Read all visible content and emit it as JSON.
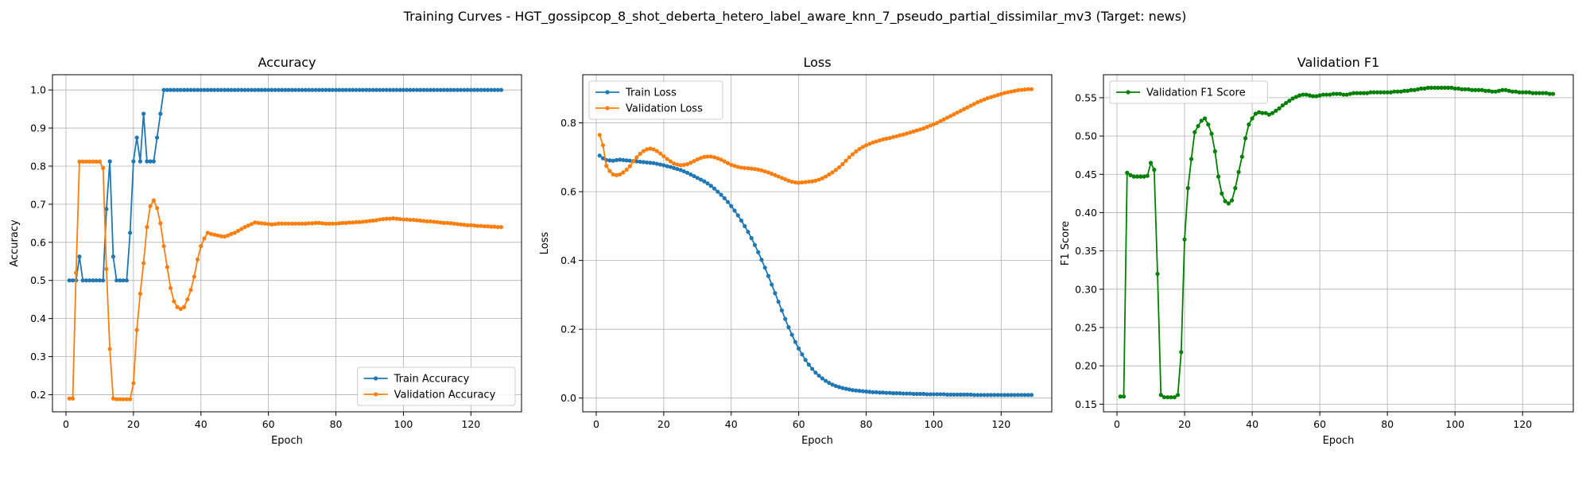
{
  "figure": {
    "suptitle": "Training Curves - HGT_gossipcop_8_shot_deberta_hetero_label_aware_knn_7_pseudo_partial_dissimilar_mv3 (Target: news)"
  },
  "chart_data": [
    {
      "type": "line",
      "title": "Accuracy",
      "xlabel": "Epoch",
      "ylabel": "Accuracy",
      "xlim": [
        -4,
        135
      ],
      "ylim": [
        0.155,
        1.04
      ],
      "xticks": [
        0,
        20,
        40,
        60,
        80,
        100,
        120
      ],
      "yticks": [
        0.2,
        0.3,
        0.4,
        0.5,
        0.6,
        0.7,
        0.8,
        0.9,
        1.0
      ],
      "grid": true,
      "legend": "lower-right",
      "series": [
        {
          "name": "Train Accuracy",
          "color": "#1f77b4",
          "x_start": 1,
          "x_step": 1,
          "values": [
            0.5,
            0.5,
            0.5,
            0.5625,
            0.5,
            0.5,
            0.5,
            0.5,
            0.5,
            0.5,
            0.5,
            0.6875,
            0.8125,
            0.5625,
            0.5,
            0.5,
            0.5,
            0.5,
            0.625,
            0.8125,
            0.875,
            0.8125,
            0.9375,
            0.8125,
            0.8125,
            0.8125,
            0.875,
            0.9375,
            1.0,
            1.0,
            1.0,
            1.0,
            1.0,
            1.0,
            1.0,
            1.0,
            1.0,
            1.0,
            1.0,
            1.0,
            1.0,
            1.0,
            1.0,
            1.0,
            1.0,
            1.0,
            1.0,
            1.0,
            1.0,
            1.0,
            1.0,
            1.0,
            1.0,
            1.0,
            1.0,
            1.0,
            1.0,
            1.0,
            1.0,
            1.0,
            1.0,
            1.0,
            1.0,
            1.0,
            1.0,
            1.0,
            1.0,
            1.0,
            1.0,
            1.0,
            1.0,
            1.0,
            1.0,
            1.0,
            1.0,
            1.0,
            1.0,
            1.0,
            1.0,
            1.0,
            1.0,
            1.0,
            1.0,
            1.0,
            1.0,
            1.0,
            1.0,
            1.0,
            1.0,
            1.0,
            1.0,
            1.0,
            1.0,
            1.0,
            1.0,
            1.0,
            1.0,
            1.0,
            1.0,
            1.0,
            1.0,
            1.0,
            1.0,
            1.0,
            1.0,
            1.0,
            1.0,
            1.0,
            1.0,
            1.0,
            1.0,
            1.0,
            1.0,
            1.0,
            1.0,
            1.0,
            1.0,
            1.0,
            1.0,
            1.0,
            1.0,
            1.0,
            1.0,
            1.0,
            1.0,
            1.0,
            1.0,
            1.0,
            1.0
          ]
        },
        {
          "name": "Validation Accuracy",
          "color": "#ff7f0e",
          "x_start": 1,
          "x_step": 1,
          "values": [
            0.19,
            0.19,
            0.52,
            0.812,
            0.812,
            0.812,
            0.812,
            0.812,
            0.812,
            0.812,
            0.795,
            0.53,
            0.32,
            0.19,
            0.188,
            0.188,
            0.188,
            0.188,
            0.188,
            0.23,
            0.37,
            0.465,
            0.545,
            0.64,
            0.695,
            0.71,
            0.69,
            0.65,
            0.59,
            0.535,
            0.48,
            0.445,
            0.43,
            0.425,
            0.43,
            0.45,
            0.475,
            0.51,
            0.555,
            0.59,
            0.61,
            0.625,
            0.622,
            0.62,
            0.618,
            0.616,
            0.615,
            0.618,
            0.622,
            0.625,
            0.63,
            0.635,
            0.64,
            0.644,
            0.648,
            0.652,
            0.651,
            0.65,
            0.649,
            0.648,
            0.647,
            0.648,
            0.649,
            0.649,
            0.649,
            0.649,
            0.649,
            0.649,
            0.649,
            0.649,
            0.649,
            0.65,
            0.65,
            0.651,
            0.651,
            0.65,
            0.649,
            0.649,
            0.649,
            0.649,
            0.65,
            0.651,
            0.651,
            0.652,
            0.652,
            0.653,
            0.653,
            0.654,
            0.655,
            0.656,
            0.657,
            0.658,
            0.66,
            0.661,
            0.662,
            0.662,
            0.663,
            0.662,
            0.661,
            0.66,
            0.66,
            0.659,
            0.659,
            0.658,
            0.657,
            0.656,
            0.655,
            0.655,
            0.654,
            0.653,
            0.652,
            0.651,
            0.651,
            0.65,
            0.649,
            0.648,
            0.647,
            0.646,
            0.645,
            0.645,
            0.644,
            0.643,
            0.643,
            0.642,
            0.642,
            0.641,
            0.641,
            0.64,
            0.64
          ]
        }
      ]
    },
    {
      "type": "line",
      "title": "Loss",
      "xlabel": "Epoch",
      "ylabel": "Loss",
      "xlim": [
        -4,
        135
      ],
      "ylim": [
        -0.04,
        0.94
      ],
      "xticks": [
        0,
        20,
        40,
        60,
        80,
        100,
        120
      ],
      "yticks": [
        0.0,
        0.2,
        0.4,
        0.6,
        0.8
      ],
      "grid": true,
      "legend": "upper-left",
      "series": [
        {
          "name": "Train Loss",
          "color": "#1f77b4",
          "x_start": 1,
          "x_step": 1,
          "values": [
            0.705,
            0.697,
            0.692,
            0.691,
            0.69,
            0.692,
            0.693,
            0.692,
            0.691,
            0.69,
            0.689,
            0.688,
            0.687,
            0.686,
            0.685,
            0.684,
            0.683,
            0.681,
            0.679,
            0.677,
            0.674,
            0.672,
            0.669,
            0.666,
            0.663,
            0.659,
            0.655,
            0.65,
            0.645,
            0.64,
            0.635,
            0.63,
            0.624,
            0.617,
            0.609,
            0.6,
            0.591,
            0.581,
            0.57,
            0.558,
            0.545,
            0.531,
            0.516,
            0.5,
            0.483,
            0.465,
            0.445,
            0.424,
            0.402,
            0.379,
            0.355,
            0.33,
            0.305,
            0.28,
            0.255,
            0.23,
            0.206,
            0.184,
            0.163,
            0.144,
            0.127,
            0.111,
            0.097,
            0.085,
            0.074,
            0.065,
            0.057,
            0.05,
            0.044,
            0.039,
            0.035,
            0.032,
            0.029,
            0.027,
            0.025,
            0.023,
            0.022,
            0.021,
            0.02,
            0.019,
            0.018,
            0.017,
            0.017,
            0.016,
            0.016,
            0.015,
            0.015,
            0.014,
            0.014,
            0.014,
            0.013,
            0.013,
            0.013,
            0.012,
            0.012,
            0.012,
            0.012,
            0.011,
            0.011,
            0.011,
            0.011,
            0.011,
            0.011,
            0.01,
            0.01,
            0.01,
            0.01,
            0.01,
            0.01,
            0.01,
            0.01,
            0.009,
            0.009,
            0.009,
            0.009,
            0.009,
            0.009,
            0.009,
            0.009,
            0.009,
            0.009,
            0.009,
            0.009,
            0.009,
            0.009,
            0.009,
            0.009,
            0.009,
            0.009
          ]
        },
        {
          "name": "Validation Loss",
          "color": "#ff7f0e",
          "x_start": 1,
          "x_step": 1,
          "values": [
            0.765,
            0.735,
            0.675,
            0.66,
            0.65,
            0.648,
            0.65,
            0.656,
            0.664,
            0.674,
            0.688,
            0.7,
            0.71,
            0.718,
            0.723,
            0.725,
            0.723,
            0.718,
            0.711,
            0.703,
            0.695,
            0.688,
            0.682,
            0.679,
            0.677,
            0.678,
            0.68,
            0.684,
            0.689,
            0.694,
            0.698,
            0.701,
            0.702,
            0.702,
            0.7,
            0.697,
            0.693,
            0.688,
            0.683,
            0.678,
            0.675,
            0.672,
            0.67,
            0.669,
            0.668,
            0.667,
            0.666,
            0.664,
            0.662,
            0.659,
            0.656,
            0.652,
            0.648,
            0.644,
            0.64,
            0.636,
            0.632,
            0.629,
            0.627,
            0.626,
            0.627,
            0.628,
            0.629,
            0.63,
            0.632,
            0.635,
            0.639,
            0.644,
            0.65,
            0.656,
            0.663,
            0.671,
            0.68,
            0.69,
            0.7,
            0.709,
            0.717,
            0.724,
            0.73,
            0.735,
            0.739,
            0.743,
            0.746,
            0.749,
            0.752,
            0.754,
            0.756,
            0.759,
            0.761,
            0.764,
            0.766,
            0.769,
            0.772,
            0.775,
            0.778,
            0.781,
            0.784,
            0.788,
            0.792,
            0.796,
            0.8,
            0.805,
            0.81,
            0.815,
            0.82,
            0.825,
            0.83,
            0.835,
            0.84,
            0.845,
            0.85,
            0.855,
            0.86,
            0.864,
            0.868,
            0.872,
            0.875,
            0.878,
            0.881,
            0.884,
            0.887,
            0.889,
            0.891,
            0.893,
            0.895,
            0.896,
            0.897,
            0.898,
            0.898
          ]
        }
      ]
    },
    {
      "type": "line",
      "title": "Validation F1",
      "xlabel": "Epoch",
      "ylabel": "F1 Score",
      "xlim": [
        -4,
        135
      ],
      "ylim": [
        0.14,
        0.58
      ],
      "xticks": [
        0,
        20,
        40,
        60,
        80,
        100,
        120
      ],
      "yticks": [
        0.15,
        0.2,
        0.25,
        0.3,
        0.35,
        0.4,
        0.45,
        0.5,
        0.55
      ],
      "grid": true,
      "legend": "upper-left",
      "series": [
        {
          "name": "Validation F1 Score",
          "color": "#008000",
          "x_start": 1,
          "x_step": 1,
          "values": [
            0.16,
            0.16,
            0.452,
            0.449,
            0.447,
            0.447,
            0.447,
            0.447,
            0.448,
            0.465,
            0.456,
            0.32,
            0.162,
            0.159,
            0.159,
            0.159,
            0.159,
            0.162,
            0.218,
            0.365,
            0.432,
            0.47,
            0.505,
            0.513,
            0.52,
            0.523,
            0.515,
            0.503,
            0.48,
            0.447,
            0.425,
            0.415,
            0.412,
            0.416,
            0.432,
            0.453,
            0.473,
            0.497,
            0.515,
            0.523,
            0.529,
            0.531,
            0.53,
            0.53,
            0.528,
            0.53,
            0.533,
            0.536,
            0.54,
            0.543,
            0.546,
            0.549,
            0.551,
            0.553,
            0.554,
            0.554,
            0.553,
            0.552,
            0.552,
            0.553,
            0.554,
            0.554,
            0.554,
            0.555,
            0.555,
            0.555,
            0.554,
            0.554,
            0.555,
            0.556,
            0.556,
            0.556,
            0.556,
            0.556,
            0.557,
            0.557,
            0.557,
            0.557,
            0.557,
            0.557,
            0.557,
            0.558,
            0.558,
            0.558,
            0.559,
            0.559,
            0.56,
            0.56,
            0.561,
            0.562,
            0.562,
            0.563,
            0.563,
            0.563,
            0.563,
            0.563,
            0.563,
            0.563,
            0.563,
            0.562,
            0.562,
            0.561,
            0.561,
            0.561,
            0.56,
            0.56,
            0.56,
            0.56,
            0.559,
            0.559,
            0.558,
            0.558,
            0.559,
            0.56,
            0.56,
            0.559,
            0.558,
            0.558,
            0.557,
            0.557,
            0.557,
            0.557,
            0.556,
            0.556,
            0.556,
            0.556,
            0.556,
            0.555,
            0.555
          ]
        }
      ]
    }
  ]
}
